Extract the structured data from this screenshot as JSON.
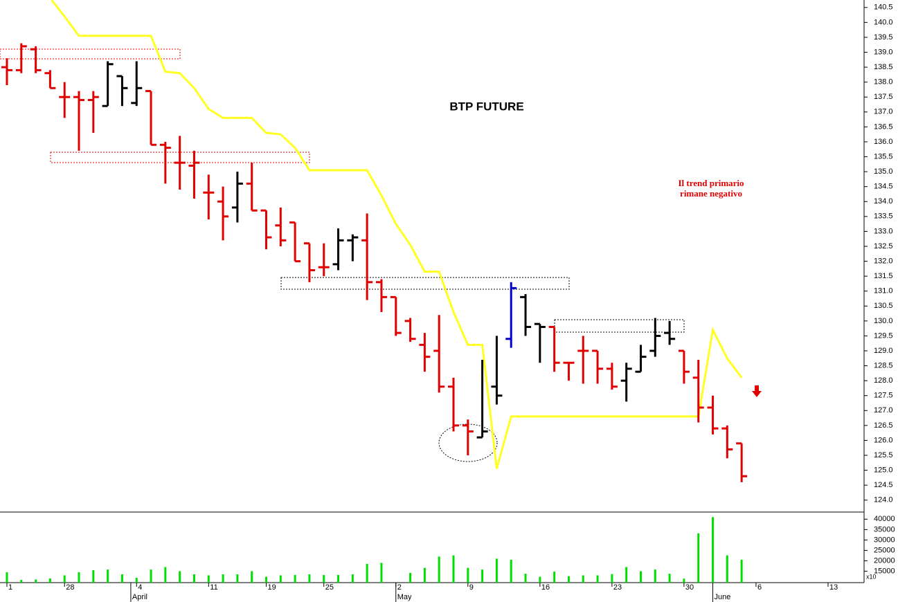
{
  "chart_data": [
    {
      "type": "ohlc",
      "title": "BTP FUTURE",
      "annotation": [
        "Il trend primario",
        "rimane negativo"
      ],
      "x": [
        0,
        1,
        2,
        3,
        4,
        5,
        6,
        7,
        8,
        9,
        10,
        11,
        12,
        13,
        14,
        15,
        16,
        17,
        18,
        19,
        20,
        21,
        22,
        23,
        24,
        25,
        26,
        27,
        28,
        29,
        30,
        31,
        32,
        33,
        34,
        35,
        36,
        37,
        38,
        39,
        40,
        41,
        42,
        43,
        44,
        45,
        46,
        47,
        48,
        49,
        50,
        51
      ],
      "open": [
        138.5,
        138.4,
        139.1,
        138.3,
        137.5,
        137.5,
        137.4,
        137.2,
        138.2,
        137.3,
        137.7,
        135.9,
        135.3,
        135.2,
        134.3,
        134.0,
        133.8,
        134.6,
        133.7,
        133.2,
        133.3,
        132.6,
        131.8,
        131.9,
        132.7,
        132.7,
        131.3,
        130.8,
        130.0,
        129.2,
        129.0,
        127.8,
        126.5,
        126.1,
        127.8,
        129.4,
        130.8,
        129.9,
        129.8,
        128.6,
        129.0,
        129.0,
        128.4,
        128.0,
        128.3,
        129.0,
        129.6,
        129.0,
        128.1,
        127.1,
        126.4,
        125.9
      ],
      "high": [
        138.8,
        139.3,
        139.2,
        138.4,
        138.0,
        137.7,
        137.7,
        138.7,
        138.2,
        138.7,
        137.7,
        136.0,
        136.2,
        135.7,
        134.9,
        134.5,
        135.0,
        135.3,
        133.7,
        133.8,
        133.3,
        132.6,
        132.6,
        133.1,
        132.9,
        133.6,
        131.4,
        130.8,
        130.1,
        129.6,
        130.2,
        128.1,
        126.7,
        128.7,
        129.5,
        131.3,
        130.9,
        129.9,
        129.8,
        128.6,
        129.5,
        129.0,
        128.6,
        128.6,
        129.2,
        130.1,
        130.0,
        129.0,
        128.7,
        127.5,
        126.5,
        125.9
      ],
      "low": [
        137.9,
        138.3,
        138.3,
        137.8,
        136.8,
        135.7,
        136.3,
        137.2,
        137.2,
        137.2,
        135.9,
        134.6,
        134.4,
        134.1,
        133.4,
        132.7,
        133.3,
        133.7,
        132.4,
        132.5,
        132.0,
        131.3,
        131.5,
        131.7,
        132.0,
        130.7,
        130.3,
        129.5,
        129.3,
        128.3,
        127.6,
        126.3,
        125.5,
        126.1,
        127.2,
        129.1,
        129.5,
        128.6,
        128.3,
        128.0,
        127.9,
        127.9,
        127.7,
        127.3,
        128.3,
        128.8,
        129.2,
        127.9,
        126.6,
        126.2,
        125.4,
        124.6
      ],
      "close": [
        138.4,
        139.2,
        138.4,
        137.8,
        137.5,
        137.4,
        137.5,
        138.6,
        137.8,
        137.8,
        135.9,
        135.8,
        135.3,
        135.3,
        134.3,
        133.5,
        134.6,
        133.7,
        132.8,
        132.7,
        132.0,
        131.7,
        131.8,
        132.7,
        132.8,
        131.3,
        130.8,
        129.6,
        129.4,
        128.8,
        127.8,
        126.5,
        126.3,
        126.3,
        127.5,
        131.1,
        129.8,
        129.8,
        128.6,
        128.6,
        129.0,
        128.4,
        127.8,
        128.4,
        128.8,
        129.5,
        129.4,
        128.3,
        127.1,
        126.4,
        125.7,
        124.8
      ],
      "colors": [
        "#e00000",
        "#e00000",
        "#e00000",
        "#e00000",
        "#e00000",
        "#e00000",
        "#e00000",
        "#000000",
        "#000000",
        "#000000",
        "#e00000",
        "#e00000",
        "#e00000",
        "#e00000",
        "#e00000",
        "#e00000",
        "#000000",
        "#e00000",
        "#e00000",
        "#e00000",
        "#e00000",
        "#e00000",
        "#e00000",
        "#000000",
        "#000000",
        "#e00000",
        "#e00000",
        "#e00000",
        "#e00000",
        "#e00000",
        "#e00000",
        "#e00000",
        "#e00000",
        "#000000",
        "#000000",
        "#0000cc",
        "#000000",
        "#000000",
        "#e00000",
        "#e00000",
        "#e00000",
        "#e00000",
        "#e00000",
        "#000000",
        "#000000",
        "#000000",
        "#000000",
        "#e00000",
        "#e00000",
        "#e00000",
        "#e00000",
        "#e00000"
      ],
      "lines": [
        {
          "color": "#ffff22",
          "x": [
            3.1,
            4,
            5,
            10,
            11,
            12,
            13,
            14,
            15,
            17,
            18,
            19,
            20,
            21,
            25,
            26,
            27,
            28,
            29,
            30,
            31,
            32,
            33,
            34,
            35,
            48,
            49,
            50,
            51
          ],
          "values": [
            140.75,
            140.2,
            139.55,
            139.55,
            138.35,
            138.3,
            137.8,
            137.1,
            136.8,
            136.8,
            136.3,
            136.25,
            135.8,
            135.05,
            135.05,
            134.2,
            133.25,
            132.55,
            131.65,
            131.65,
            130.3,
            129.2,
            129.2,
            125.05,
            126.8,
            126.8,
            129.7,
            128.75,
            128.1
          ]
        }
      ],
      "xlim": [
        -0.48,
        59.5
      ],
      "ylim": [
        123.6,
        140.75
      ],
      "yticks": [
        {
          "value": 124,
          "label": "124.0"
        },
        124.5,
        {
          "value": 125,
          "label": "125.0"
        },
        125.5,
        {
          "value": 126,
          "label": "126.0"
        },
        126.5,
        {
          "value": 127,
          "label": "127.0"
        },
        127.5,
        {
          "value": 128,
          "label": "128.0"
        },
        128.5,
        {
          "value": 129,
          "label": "129.0"
        },
        129.5,
        {
          "value": 130,
          "label": "130.0"
        },
        130.5,
        {
          "value": 131,
          "label": "131.0"
        },
        131.5,
        {
          "value": 132,
          "label": "132.0"
        },
        132.5,
        {
          "value": 133,
          "label": "133.0"
        },
        133.5,
        {
          "value": 134,
          "label": "134.0"
        },
        134.5,
        {
          "value": 135,
          "label": "135.0"
        },
        135.5,
        {
          "value": 136,
          "label": "136.0"
        },
        136.5,
        {
          "value": 137,
          "label": "137.0"
        },
        137.5,
        {
          "value": 138,
          "label": "138.0"
        },
        138.5,
        {
          "value": 139,
          "label": "139.0"
        },
        139.5,
        {
          "value": 140,
          "label": "140.0"
        },
        140.5
      ]
    },
    {
      "type": "bar",
      "color": "#00e000",
      "axis_unit": "x10",
      "x": [
        0,
        1,
        2,
        3,
        4,
        5,
        6,
        7,
        8,
        9,
        10,
        11,
        12,
        13,
        14,
        15,
        16,
        17,
        18,
        19,
        20,
        21,
        22,
        23,
        24,
        25,
        26,
        27,
        28,
        29,
        30,
        31,
        32,
        33,
        34,
        35,
        36,
        37,
        38,
        39,
        40,
        41,
        42,
        43,
        44,
        45,
        46,
        47,
        48,
        49,
        50,
        51
      ],
      "values": [
        14500,
        10800,
        11000,
        11500,
        13000,
        14500,
        15500,
        15800,
        13500,
        11800,
        15800,
        17000,
        15000,
        13500,
        13000,
        13500,
        13500,
        15000,
        12300,
        13000,
        13200,
        13500,
        13200,
        13200,
        13500,
        18500,
        19000,
        null,
        14200,
        16600,
        22000,
        22600,
        16600,
        15800,
        21000,
        20500,
        13800,
        12300,
        14800,
        12600,
        13000,
        13000,
        13600,
        17000,
        15000,
        15800,
        13800,
        11400,
        33200,
        41000,
        22600,
        20500
      ],
      "xlim": [
        -0.48,
        59.5
      ],
      "ylim": [
        9500,
        43100
      ],
      "yticks": [
        15000,
        20000,
        25000,
        30000,
        35000,
        40000
      ],
      "xticks": [
        {
          "value": 0,
          "label": "1"
        },
        {
          "value": 4,
          "label": "28"
        },
        {
          "value": 9,
          "label": "4"
        },
        {
          "value": 14,
          "label": "11"
        },
        {
          "value": 18,
          "label": "19"
        },
        {
          "value": 22,
          "label": "25"
        },
        {
          "value": 27,
          "label": "2"
        },
        {
          "value": 32,
          "label": "9"
        },
        {
          "value": 37,
          "label": "16"
        },
        {
          "value": 42,
          "label": "23"
        },
        {
          "value": 47,
          "label": "30"
        },
        {
          "value": 52,
          "label": "6"
        },
        {
          "value": 57,
          "label": "13"
        }
      ],
      "month_ticks": [
        {
          "value": 8.6,
          "label": "April"
        },
        {
          "value": 27,
          "label": "May"
        },
        {
          "value": 49,
          "label": "June"
        }
      ]
    }
  ]
}
